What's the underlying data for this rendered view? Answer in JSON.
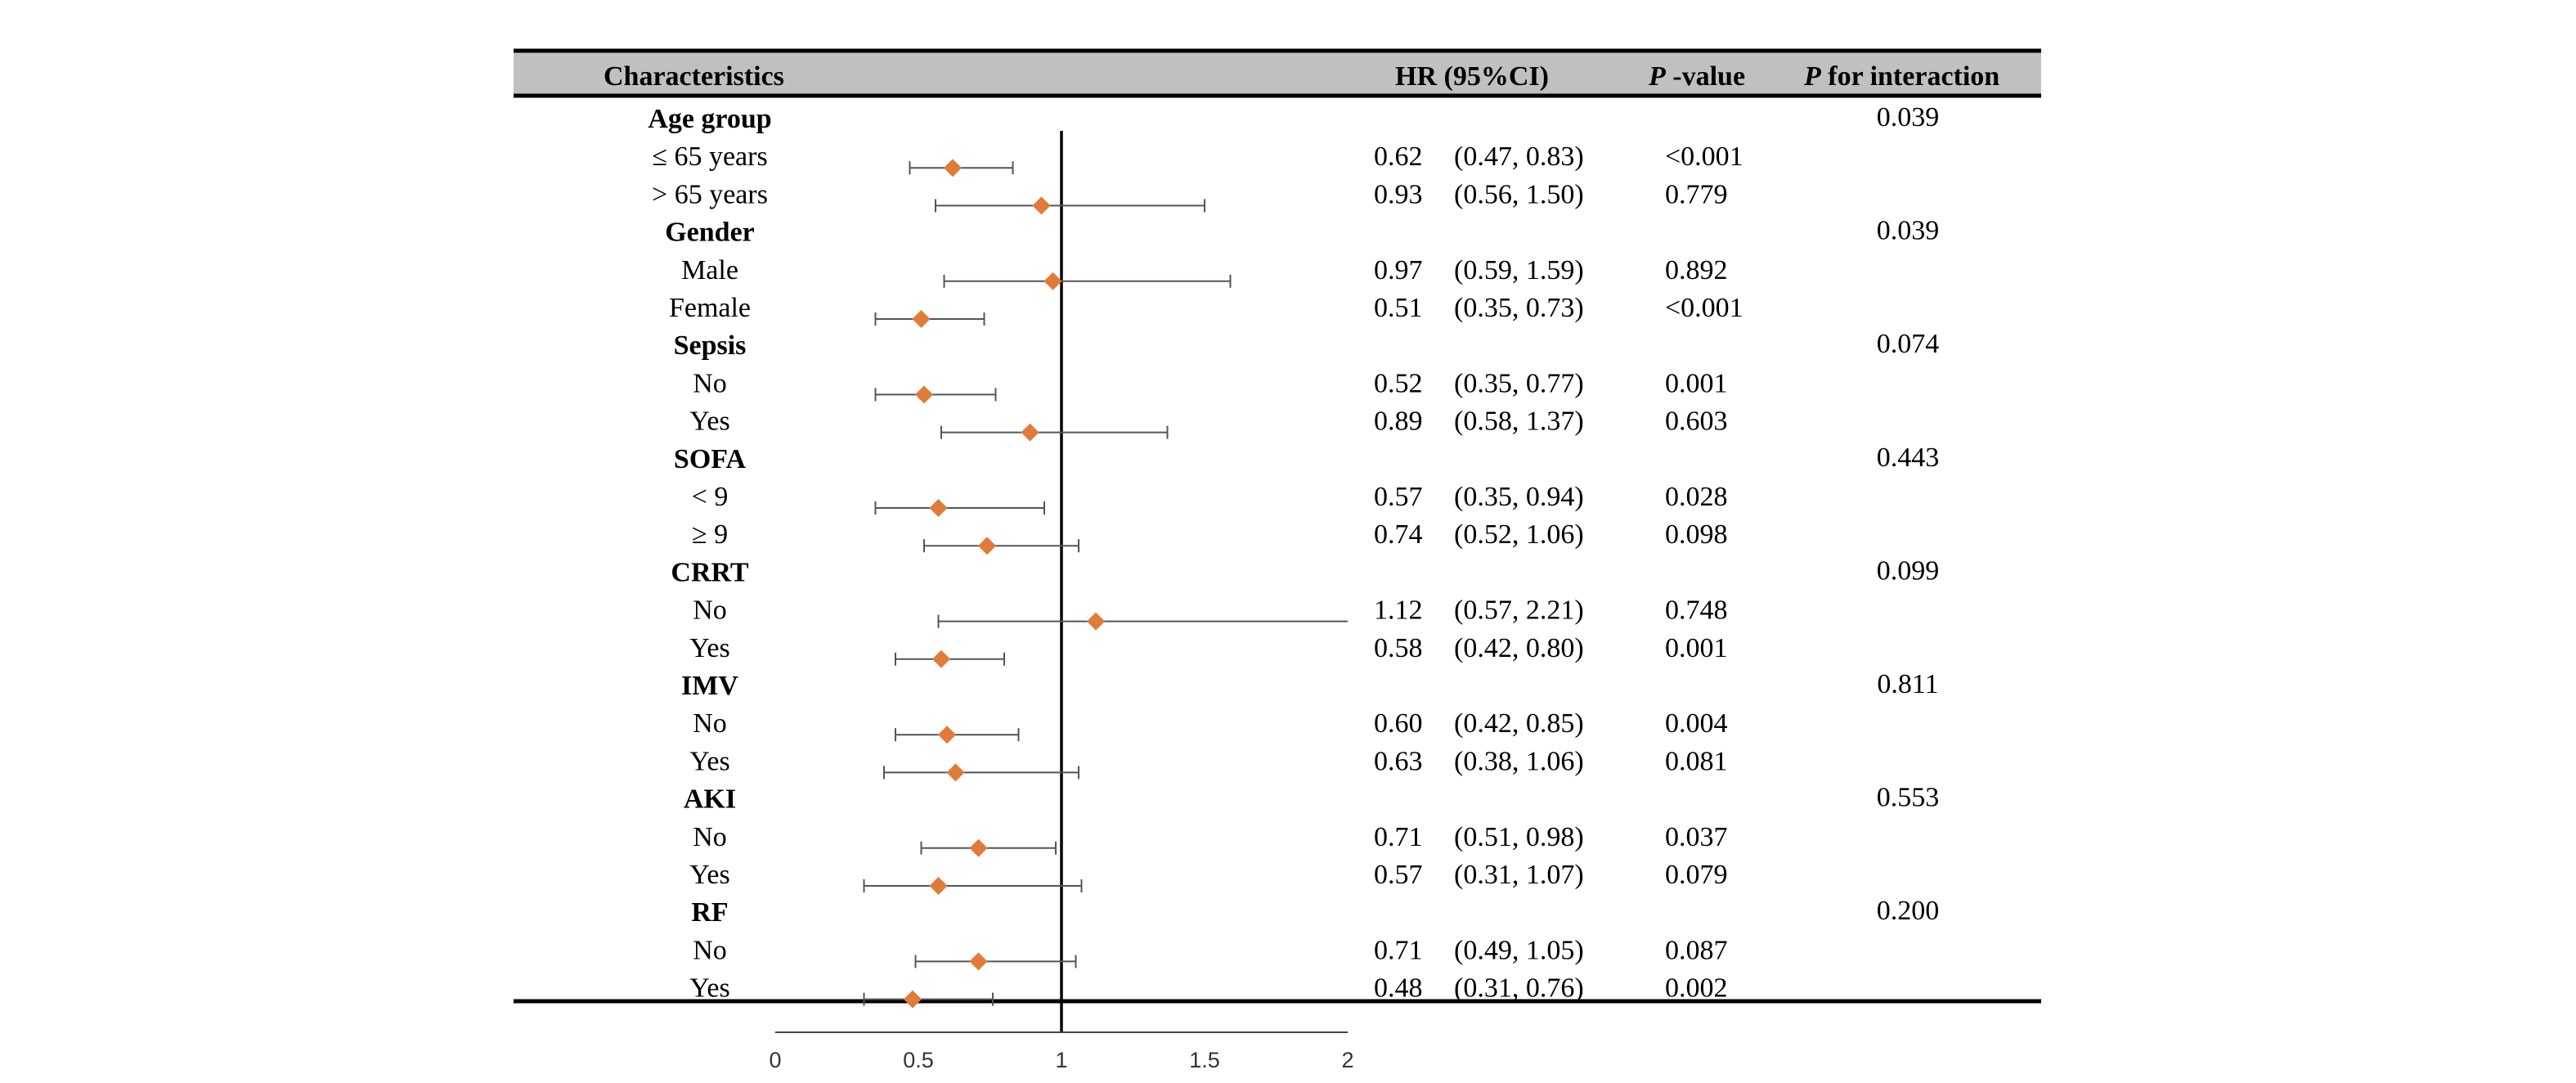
{
  "headers": {
    "characteristics": "Characteristics",
    "hr": "HR (95%CI)",
    "p_italic": "P",
    "p_rest": " -value",
    "pint_italic": "P",
    "pint_rest": " for interaction"
  },
  "chart_data": {
    "type": "forest",
    "xlim": [
      0,
      2
    ],
    "reference_line": 1,
    "x_ticks": [
      "0",
      "0.5",
      "1",
      "1.5",
      "2"
    ],
    "marker_color": "#E07B39",
    "rows": [
      {
        "kind": "group",
        "label": "Age group",
        "p_int": "0.039"
      },
      {
        "kind": "sub",
        "label": "≤ 65 years",
        "hr": 0.62,
        "lo": 0.47,
        "hi": 0.83,
        "hr_text": "0.62",
        "ci_text": "(0.47, 0.83)",
        "p": "<0.001"
      },
      {
        "kind": "sub",
        "label": "> 65 years",
        "hr": 0.93,
        "lo": 0.56,
        "hi": 1.5,
        "hr_text": "0.93",
        "ci_text": "(0.56, 1.50)",
        "p": "0.779"
      },
      {
        "kind": "group",
        "label": "Gender",
        "p_int": "0.039"
      },
      {
        "kind": "sub",
        "label": "Male",
        "hr": 0.97,
        "lo": 0.59,
        "hi": 1.59,
        "hr_text": "0.97",
        "ci_text": "(0.59, 1.59)",
        "p": "0.892"
      },
      {
        "kind": "sub",
        "label": "Female",
        "hr": 0.51,
        "lo": 0.35,
        "hi": 0.73,
        "hr_text": "0.51",
        "ci_text": "(0.35, 0.73)",
        "p": "<0.001"
      },
      {
        "kind": "group",
        "label": "Sepsis",
        "p_int": "0.074"
      },
      {
        "kind": "sub",
        "label": "No",
        "hr": 0.52,
        "lo": 0.35,
        "hi": 0.77,
        "hr_text": "0.52",
        "ci_text": "(0.35, 0.77)",
        "p": "0.001"
      },
      {
        "kind": "sub",
        "label": "Yes",
        "hr": 0.89,
        "lo": 0.58,
        "hi": 1.37,
        "hr_text": "0.89",
        "ci_text": "(0.58, 1.37)",
        "p": "0.603"
      },
      {
        "kind": "group",
        "label": "SOFA",
        "p_int": "0.443"
      },
      {
        "kind": "sub",
        "label": "< 9",
        "hr": 0.57,
        "lo": 0.35,
        "hi": 0.94,
        "hr_text": "0.57",
        "ci_text": "(0.35, 0.94)",
        "p": "0.028"
      },
      {
        "kind": "sub",
        "label": "≥ 9",
        "hr": 0.74,
        "lo": 0.52,
        "hi": 1.06,
        "hr_text": "0.74",
        "ci_text": "(0.52, 1.06)",
        "p": "0.098"
      },
      {
        "kind": "group",
        "label": "CRRT",
        "p_int": "0.099"
      },
      {
        "kind": "sub",
        "label": "No",
        "hr": 1.12,
        "lo": 0.57,
        "hi": 2.21,
        "hr_text": "1.12",
        "ci_text": "(0.57, 2.21)",
        "p": "0.748"
      },
      {
        "kind": "sub",
        "label": "Yes",
        "hr": 0.58,
        "lo": 0.42,
        "hi": 0.8,
        "hr_text": "0.58",
        "ci_text": "(0.42, 0.80)",
        "p": "0.001"
      },
      {
        "kind": "group",
        "label": "IMV",
        "p_int": "0.811"
      },
      {
        "kind": "sub",
        "label": "No",
        "hr": 0.6,
        "lo": 0.42,
        "hi": 0.85,
        "hr_text": "0.60",
        "ci_text": "(0.42, 0.85)",
        "p": "0.004"
      },
      {
        "kind": "sub",
        "label": "Yes",
        "hr": 0.63,
        "lo": 0.38,
        "hi": 1.06,
        "hr_text": "0.63",
        "ci_text": "(0.38, 1.06)",
        "p": "0.081"
      },
      {
        "kind": "group",
        "label": "AKI",
        "p_int": "0.553"
      },
      {
        "kind": "sub",
        "label": "No",
        "hr": 0.71,
        "lo": 0.51,
        "hi": 0.98,
        "hr_text": "0.71",
        "ci_text": "(0.51, 0.98)",
        "p": "0.037"
      },
      {
        "kind": "sub",
        "label": "Yes",
        "hr": 0.57,
        "lo": 0.31,
        "hi": 1.07,
        "hr_text": "0.57",
        "ci_text": "(0.31, 1.07)",
        "p": "0.079"
      },
      {
        "kind": "group",
        "label": "RF",
        "p_int": "0.200"
      },
      {
        "kind": "sub",
        "label": "No",
        "hr": 0.71,
        "lo": 0.49,
        "hi": 1.05,
        "hr_text": "0.71",
        "ci_text": "(0.49, 1.05)",
        "p": "0.087"
      },
      {
        "kind": "sub",
        "label": "Yes",
        "hr": 0.48,
        "lo": 0.31,
        "hi": 0.76,
        "hr_text": "0.48",
        "ci_text": "(0.31, 0.76)",
        "p": "0.002"
      }
    ]
  }
}
